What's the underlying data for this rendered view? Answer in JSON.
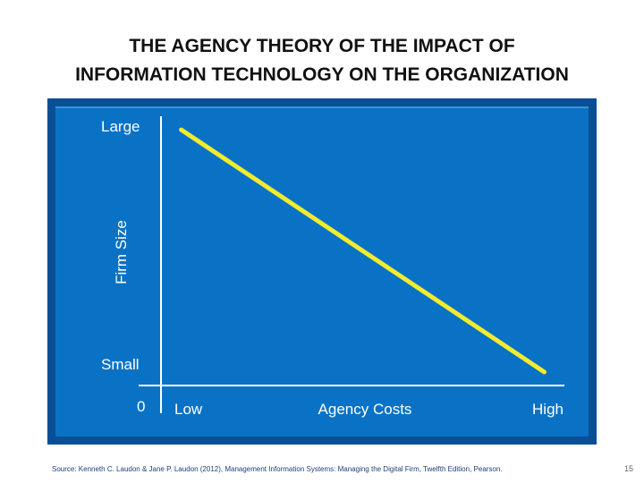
{
  "slide": {
    "title_line1": "THE AGENCY THEORY OF THE IMPACT OF",
    "title_line2": "INFORMATION TECHNOLOGY ON THE ORGANIZATION",
    "source": "Source: Kenneth C. Laudon & Jane P. Laudon (2012),  Management Information  Systems: Managing the Digital Firm, Twelfth Edition, Pearson.",
    "page_number": "15"
  },
  "colors": {
    "panel_blue": "#0a72c4",
    "panel_border": "#0a4f96",
    "axis": "#ffffff",
    "line": "#f3ec2c",
    "text": "#ffffff"
  },
  "chart_data": {
    "type": "line",
    "title": "",
    "xlabel": "Agency Costs",
    "ylabel": "Firm Size",
    "origin_label": "0",
    "x_tick_labels": [
      "Low",
      "High"
    ],
    "y_tick_labels": [
      "Small",
      "Large"
    ],
    "xlim": [
      0,
      1
    ],
    "ylim": [
      0,
      1
    ],
    "grid": false,
    "series": [
      {
        "x": [
          0.05,
          0.95
        ],
        "y": [
          0.95,
          0.05
        ]
      }
    ]
  }
}
